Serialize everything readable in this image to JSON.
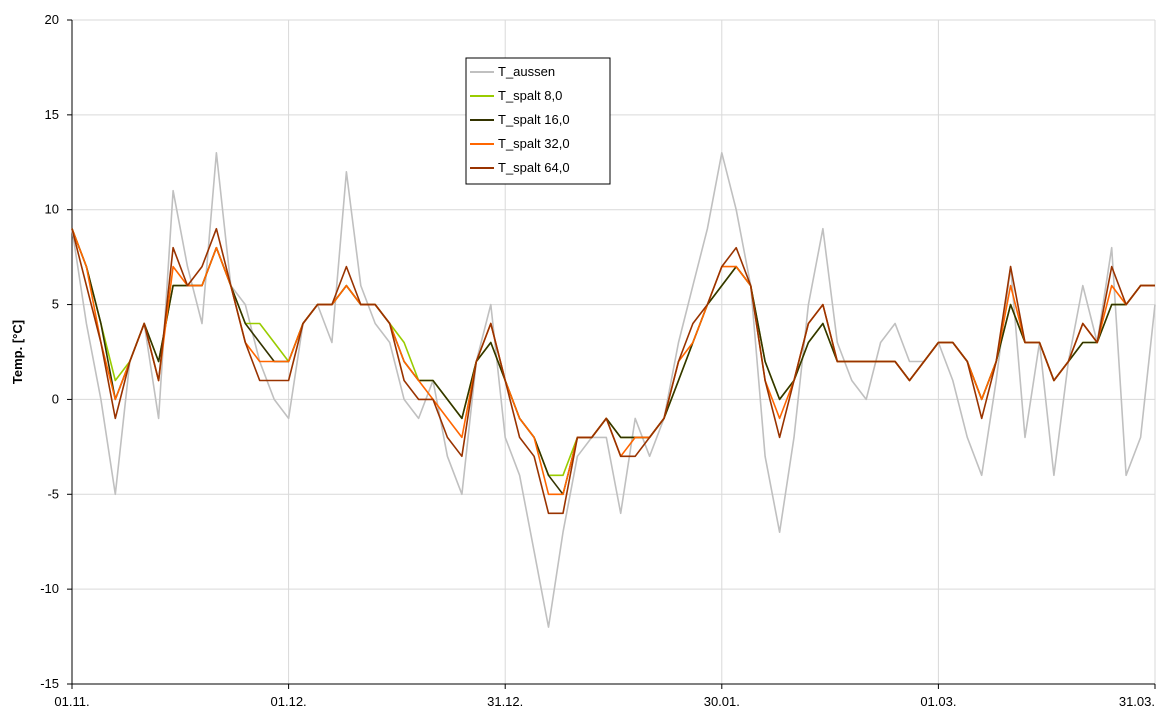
{
  "chart_data": {
    "type": "line",
    "ylabel": "Temp. [°C]",
    "ylim": [
      -15,
      20
    ],
    "yticks": [
      -15,
      -10,
      -5,
      0,
      5,
      10,
      15,
      20
    ],
    "ytick_labels": [
      "-15",
      "-10",
      "-5",
      "0",
      "5",
      "10",
      "15",
      "20"
    ],
    "xtick_labels": [
      "01.11.",
      "01.12.",
      "31.12.",
      "30.01.",
      "01.03.",
      "31.03."
    ],
    "grid": true,
    "legend_position": "top-center",
    "x": [
      0,
      2,
      4,
      6,
      8,
      10,
      12,
      14,
      16,
      18,
      20,
      22,
      24,
      26,
      28,
      30,
      32,
      34,
      36,
      38,
      40,
      42,
      44,
      46,
      48,
      50,
      52,
      54,
      56,
      58,
      60,
      62,
      64,
      66,
      68,
      70,
      72,
      74,
      76,
      78,
      80,
      82,
      84,
      86,
      88,
      90,
      92,
      94,
      96,
      98,
      100,
      102,
      104,
      106,
      108,
      110,
      112,
      114,
      116,
      118,
      120,
      122,
      124,
      126,
      128,
      130,
      132,
      134,
      136,
      138,
      140,
      142,
      144,
      146,
      148,
      150
    ],
    "xunit": "days from 01.11.",
    "series": [
      {
        "name": "T_aussen",
        "color": "#c0c0c0",
        "values": [
          9,
          4,
          0,
          -5,
          2,
          4,
          -1,
          11,
          7,
          4,
          13,
          6,
          5,
          2,
          0,
          -1,
          4,
          5,
          3,
          12,
          6,
          4,
          3,
          0,
          -1,
          1,
          -3,
          -5,
          2,
          5,
          -2,
          -4,
          -8,
          -12,
          -7,
          -3,
          -2,
          -2,
          -6,
          -1,
          -3,
          -1,
          3,
          6,
          9,
          13,
          10,
          6,
          -3,
          -7,
          -2,
          5,
          9,
          3,
          1,
          0,
          3,
          4,
          2,
          2,
          3,
          1,
          -2,
          -4,
          1,
          7,
          -2,
          3,
          -4,
          2,
          6,
          3,
          8,
          -4,
          -2,
          5
        ]
      },
      {
        "name": "T_spalt 8,0",
        "color": "#99cc00",
        "values": [
          9,
          7,
          4,
          1,
          2,
          4,
          2,
          6,
          6,
          6,
          8,
          6,
          4,
          4,
          3,
          2,
          4,
          5,
          5,
          6,
          5,
          5,
          4,
          3,
          1,
          1,
          0,
          -1,
          2,
          3,
          1,
          -1,
          -2,
          -4,
          -4,
          -2,
          -2,
          -1,
          -2,
          -2,
          -2,
          -1,
          1,
          3,
          5,
          6,
          7,
          6,
          2,
          0,
          1,
          3,
          4,
          2,
          2,
          2,
          2,
          2,
          1,
          2,
          3,
          3,
          2,
          0,
          2,
          5,
          3,
          3,
          1,
          2,
          3,
          3,
          5,
          5,
          6,
          6
        ]
      },
      {
        "name": "T_spalt 16,0",
        "color": "#333300",
        "values": [
          9,
          7,
          4,
          0,
          2,
          4,
          2,
          6,
          6,
          6,
          8,
          6,
          4,
          3,
          2,
          2,
          4,
          5,
          5,
          6,
          5,
          5,
          4,
          2,
          1,
          1,
          0,
          -1,
          2,
          3,
          1,
          -1,
          -2,
          -4,
          -5,
          -2,
          -2,
          -1,
          -2,
          -2,
          -2,
          -1,
          1,
          3,
          5,
          6,
          7,
          6,
          2,
          0,
          1,
          3,
          4,
          2,
          2,
          2,
          2,
          2,
          1,
          2,
          3,
          3,
          2,
          0,
          2,
          5,
          3,
          3,
          1,
          2,
          3,
          3,
          5,
          5,
          6,
          6
        ]
      },
      {
        "name": "T_spalt 32,0",
        "color": "#ff6600",
        "values": [
          9,
          7,
          3,
          0,
          2,
          4,
          1,
          7,
          6,
          6,
          8,
          6,
          3,
          2,
          2,
          2,
          4,
          5,
          5,
          6,
          5,
          5,
          4,
          2,
          1,
          0,
          -1,
          -2,
          2,
          4,
          1,
          -1,
          -2,
          -5,
          -5,
          -2,
          -2,
          -1,
          -3,
          -2,
          -2,
          -1,
          2,
          3,
          5,
          7,
          7,
          6,
          1,
          -1,
          1,
          4,
          5,
          2,
          2,
          2,
          2,
          2,
          1,
          2,
          3,
          3,
          2,
          0,
          2,
          6,
          3,
          3,
          1,
          2,
          4,
          3,
          6,
          5,
          6,
          6
        ]
      },
      {
        "name": "T_spalt 64,0",
        "color": "#993300",
        "values": [
          9,
          6,
          3,
          -1,
          2,
          4,
          1,
          8,
          6,
          7,
          9,
          6,
          3,
          1,
          1,
          1,
          4,
          5,
          5,
          7,
          5,
          5,
          4,
          1,
          0,
          0,
          -2,
          -3,
          2,
          4,
          1,
          -2,
          -3,
          -6,
          -6,
          -2,
          -2,
          -1,
          -3,
          -3,
          -2,
          -1,
          2,
          4,
          5,
          7,
          8,
          6,
          1,
          -2,
          1,
          4,
          5,
          2,
          2,
          2,
          2,
          2,
          1,
          2,
          3,
          3,
          2,
          -1,
          2,
          7,
          3,
          3,
          1,
          2,
          4,
          3,
          7,
          5,
          6,
          6
        ]
      }
    ]
  }
}
